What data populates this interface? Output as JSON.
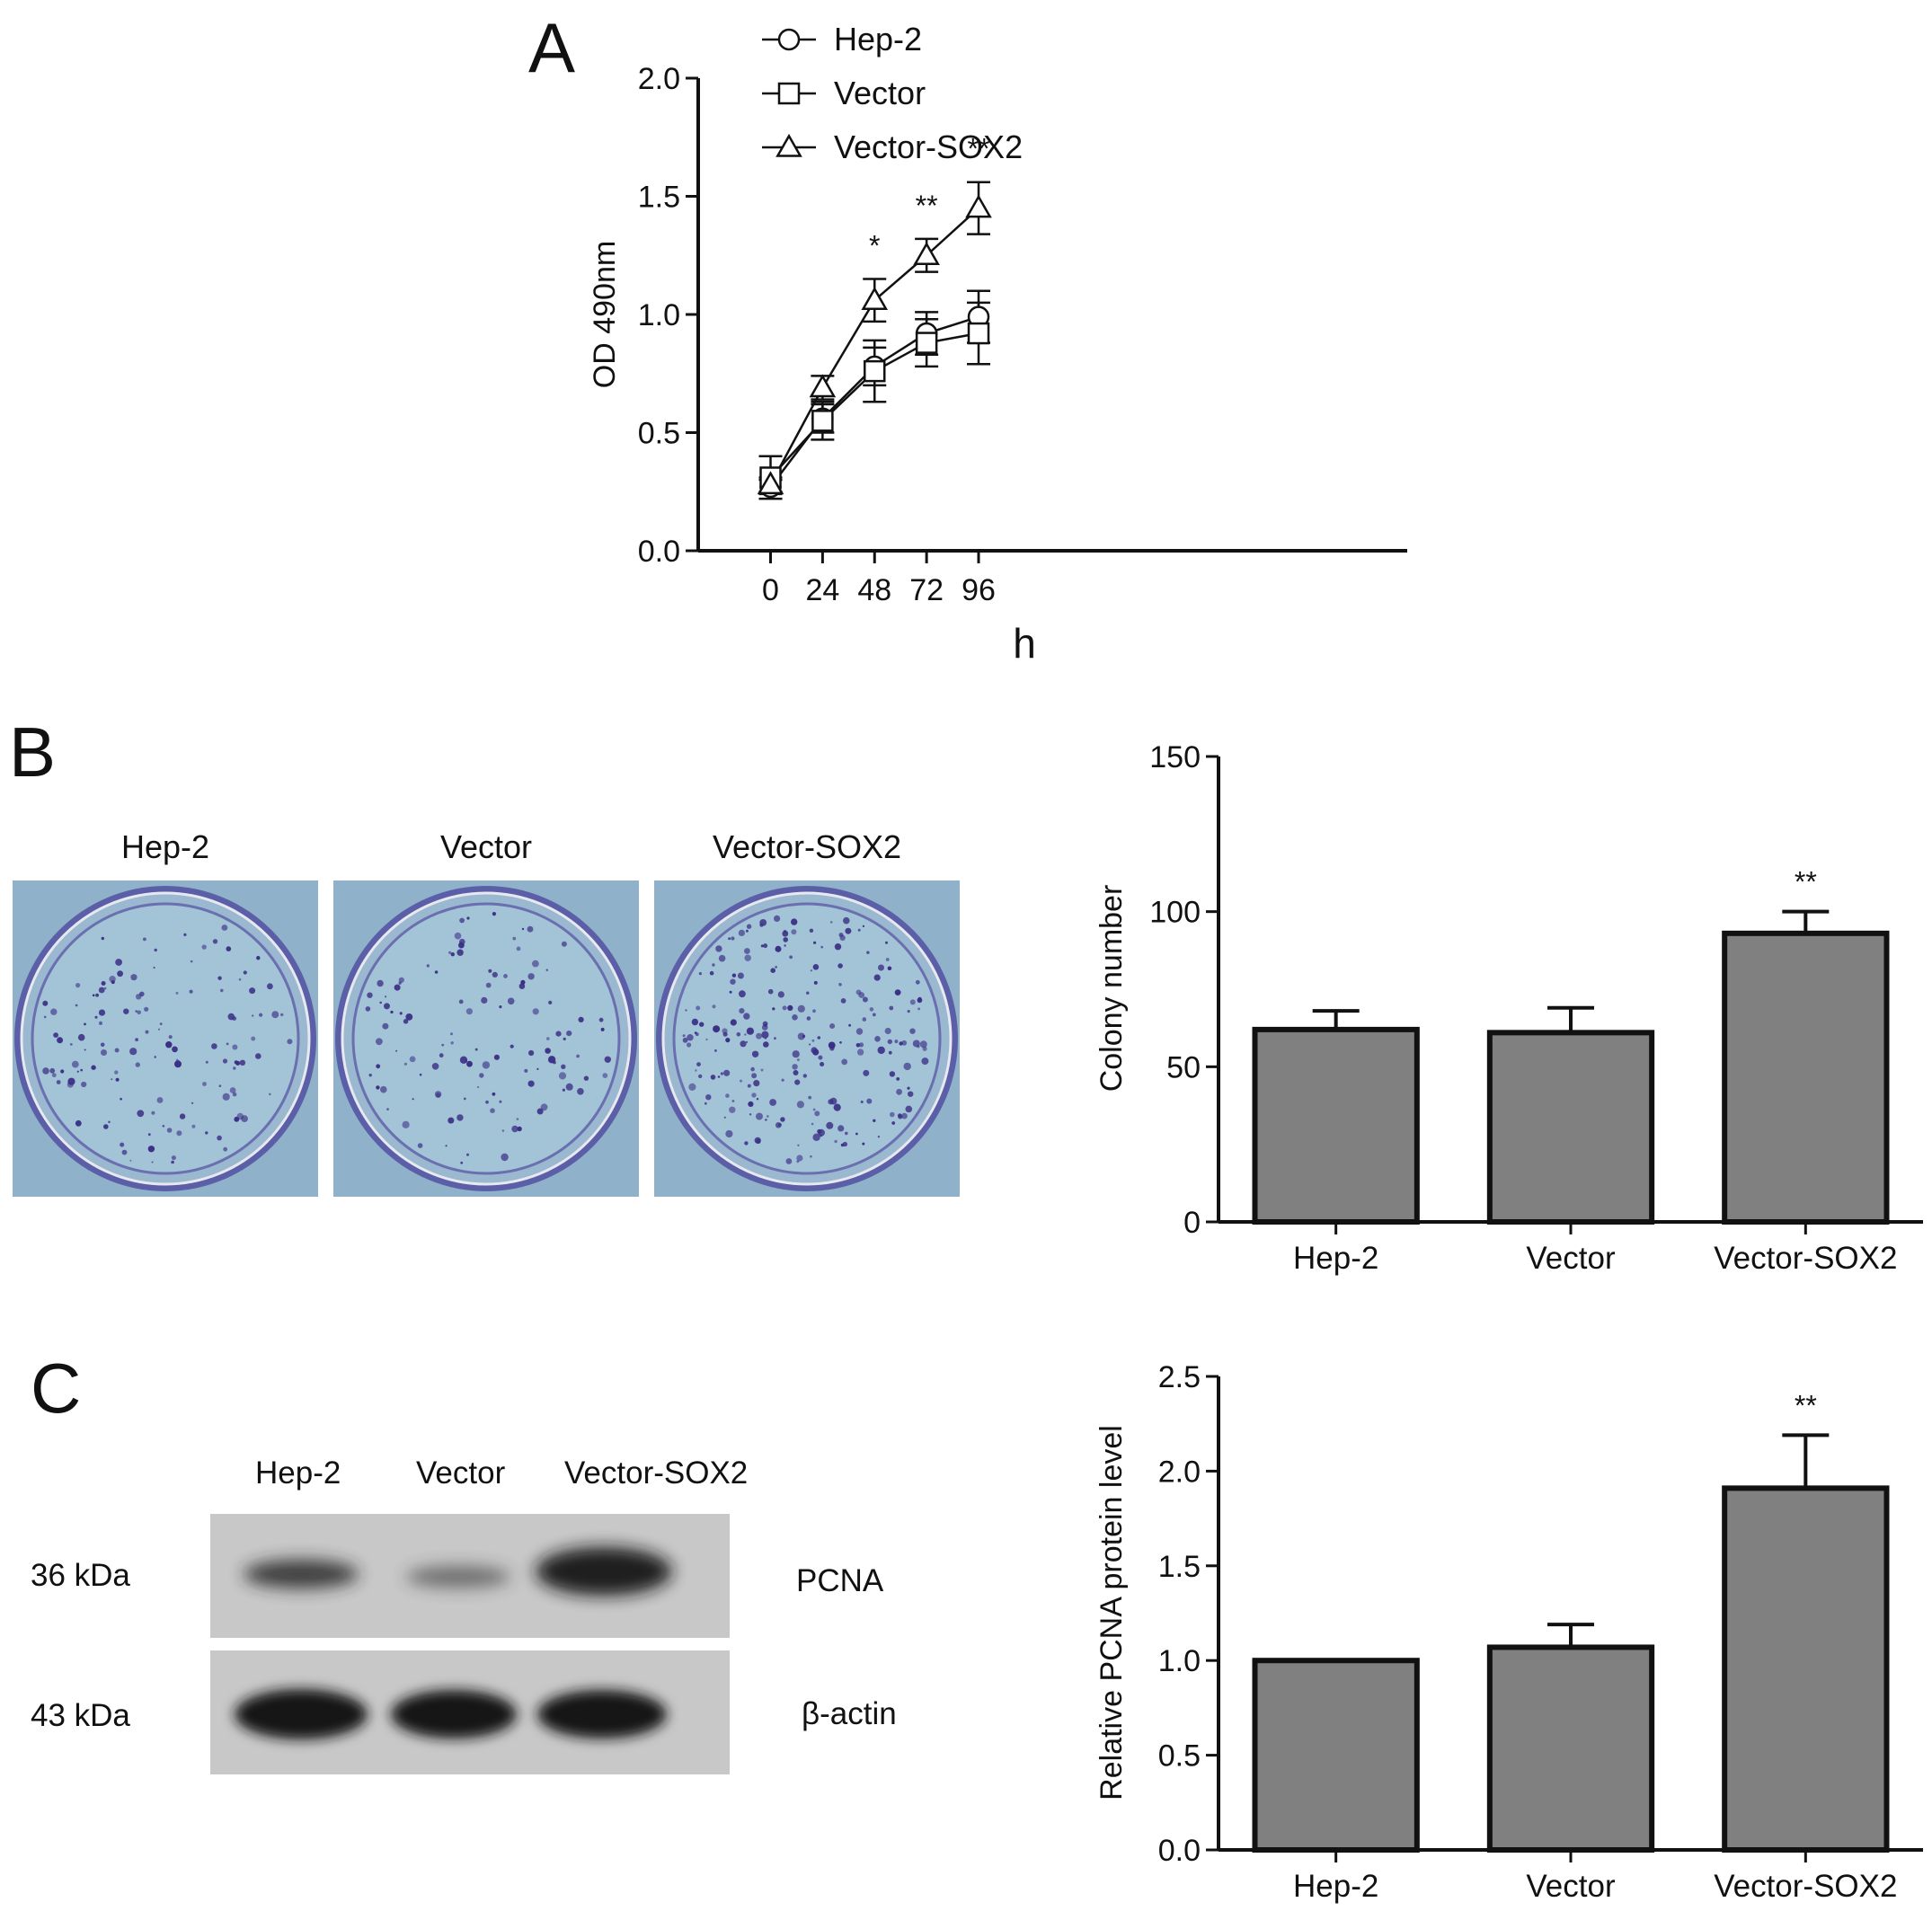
{
  "panels": {
    "a": {
      "letter": "A"
    },
    "b": {
      "letter": "B",
      "dish_labels": [
        "Hep-2",
        "Vector",
        "Vector-SOX2"
      ]
    },
    "c": {
      "letter": "C",
      "lane_labels": [
        "Hep-2",
        "Vector",
        "Vector-SOX2"
      ],
      "band_sizes": [
        "36 kDa",
        "43 kDa"
      ],
      "band_names": [
        "PCNA",
        "β-actin"
      ]
    }
  },
  "colors": {
    "ink": "#111111",
    "bar_fill": "#808080",
    "dish_bg": "#8fb1c9",
    "colony": "#3b2f86",
    "blot_bg": "#c8c8c8",
    "band": "#1e1e1e"
  },
  "chart_data": [
    {
      "id": "A",
      "type": "line",
      "xlabel": "h",
      "ylabel": "OD 490nm",
      "x": [
        0,
        24,
        48,
        72,
        96
      ],
      "xticks": [
        "0",
        "24",
        "48",
        "72",
        "96"
      ],
      "ylim": [
        0,
        2.0
      ],
      "yticks": [
        "0.0",
        "0.5",
        "1.0",
        "1.5",
        "2.0"
      ],
      "legend": "top-left",
      "series": [
        {
          "name": "Hep-2",
          "marker": "circle",
          "values": [
            0.27,
            0.56,
            0.78,
            0.92,
            0.99
          ],
          "err": [
            0.03,
            0.06,
            0.08,
            0.09,
            0.11
          ]
        },
        {
          "name": "Vector",
          "marker": "square",
          "values": [
            0.31,
            0.55,
            0.76,
            0.88,
            0.92
          ],
          "err": [
            0.09,
            0.08,
            0.13,
            0.1,
            0.13
          ]
        },
        {
          "name": "Vector-SOX2",
          "marker": "triangle",
          "values": [
            0.28,
            0.69,
            1.06,
            1.25,
            1.45
          ],
          "err": [
            0.03,
            0.05,
            0.09,
            0.07,
            0.11
          ]
        }
      ],
      "annotations": [
        {
          "x": 48,
          "text": "*"
        },
        {
          "x": 72,
          "text": "**"
        },
        {
          "x": 96,
          "text": "**"
        }
      ]
    },
    {
      "id": "B",
      "type": "bar",
      "ylabel": "Colony number",
      "categories": [
        "Hep-2",
        "Vector",
        "Vector-SOX2"
      ],
      "values": [
        62,
        61,
        93
      ],
      "err": [
        6,
        8,
        7
      ],
      "ylim": [
        0,
        150
      ],
      "yticks": [
        "0",
        "50",
        "100",
        "150"
      ],
      "annotations": [
        {
          "category": "Vector-SOX2",
          "text": "**"
        }
      ]
    },
    {
      "id": "C",
      "type": "bar",
      "ylabel": "Relative PCNA protein level",
      "categories": [
        "Hep-2",
        "Vector",
        "Vector-SOX2"
      ],
      "values": [
        1.0,
        1.07,
        1.91
      ],
      "err": [
        0,
        0.12,
        0.28
      ],
      "ylim": [
        0,
        2.5
      ],
      "yticks": [
        "0.0",
        "0.5",
        "1.0",
        "1.5",
        "2.0",
        "2.5"
      ],
      "annotations": [
        {
          "category": "Vector-SOX2",
          "text": "**"
        }
      ]
    }
  ]
}
